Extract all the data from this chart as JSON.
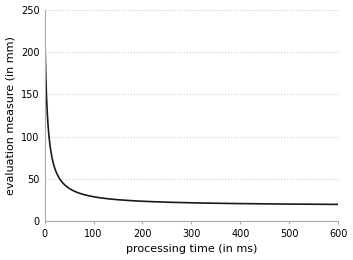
{
  "xlabel": "processing time (in ms)",
  "ylabel": "evaluation measure (in mm)",
  "xlim": [
    0,
    600
  ],
  "ylim": [
    0,
    250
  ],
  "xticks": [
    0,
    100,
    200,
    300,
    400,
    500,
    600
  ],
  "yticks": [
    0,
    50,
    100,
    150,
    200,
    250
  ],
  "line_color": "#1a1a1a",
  "line_width": 1.2,
  "grid_color": "#cccccc",
  "background_color": "#ffffff",
  "x_start": 0.01,
  "x_end": 600,
  "y_plateau": 18,
  "hyperbola_a": 1150,
  "hyperbola_b": 5.0,
  "xlabel_fontsize": 8,
  "ylabel_fontsize": 8,
  "tick_fontsize": 7
}
